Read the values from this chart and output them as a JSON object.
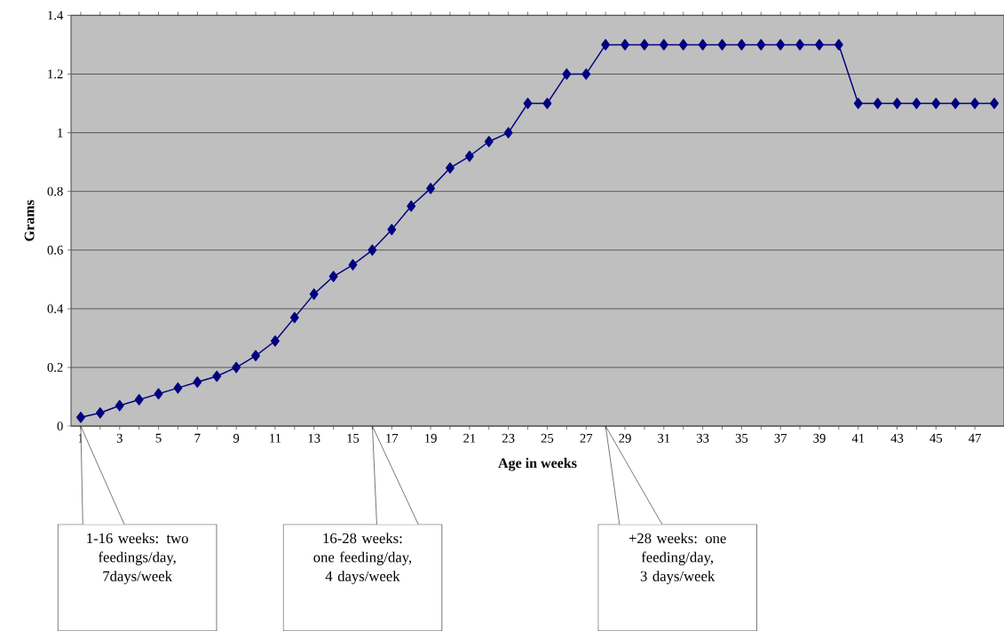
{
  "chart_data": {
    "type": "line",
    "xlabel": "Age in weeks",
    "ylabel": "Grams",
    "x": [
      1,
      2,
      3,
      4,
      5,
      6,
      7,
      8,
      9,
      10,
      11,
      12,
      13,
      14,
      15,
      16,
      17,
      18,
      19,
      20,
      21,
      22,
      23,
      24,
      25,
      26,
      27,
      28,
      29,
      30,
      31,
      32,
      33,
      34,
      35,
      36,
      37,
      38,
      39,
      40,
      41,
      42,
      43,
      44,
      45,
      46,
      47,
      48
    ],
    "series": [
      {
        "color": "#000080",
        "values": [
          0.03,
          0.045,
          0.07,
          0.09,
          0.11,
          0.13,
          0.15,
          0.17,
          0.2,
          0.24,
          0.29,
          0.37,
          0.45,
          0.51,
          0.55,
          0.6,
          0.67,
          0.75,
          0.81,
          0.88,
          0.92,
          0.97,
          1.0,
          1.1,
          1.1,
          1.2,
          1.2,
          1.3,
          1.3,
          1.3,
          1.3,
          1.3,
          1.3,
          1.3,
          1.3,
          1.3,
          1.3,
          1.3,
          1.3,
          1.3,
          1.1,
          1.1,
          1.1,
          1.1,
          1.1,
          1.1,
          1.1,
          1.1
        ]
      }
    ],
    "xlim": [
      0.5,
      48.5
    ],
    "xticks": [
      1,
      3,
      5,
      7,
      9,
      11,
      13,
      15,
      17,
      19,
      21,
      23,
      25,
      27,
      29,
      31,
      33,
      35,
      37,
      39,
      41,
      43,
      45,
      47
    ],
    "ylim": [
      0,
      1.4
    ],
    "yticks": [
      0,
      0.2,
      0.4,
      0.6,
      0.8,
      1,
      1.2,
      1.4
    ],
    "grid": "y",
    "marker": "diamond",
    "line_style": "solid",
    "annotations": [
      "1-16 weeks: two feedings/day, 7days/week",
      "16-28 weeks: one feeding/day, 4 days/week",
      "+28 weeks: one feeding/day, 3 days/week"
    ]
  }
}
